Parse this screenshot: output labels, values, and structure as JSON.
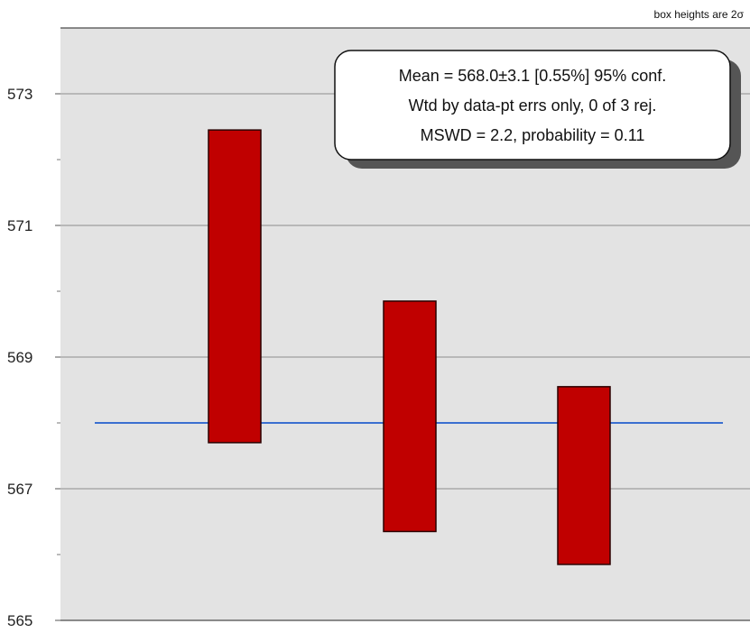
{
  "chart_data": {
    "type": "bar",
    "subtype": "weighted-mean-error-bars",
    "corner_note": "box heights are 2σ",
    "ylim": [
      565,
      574
    ],
    "y_ticks_labeled": [
      565,
      567,
      569,
      571,
      573
    ],
    "y_ticks_minor": [
      566,
      568,
      570,
      572
    ],
    "grid": true,
    "boxes": [
      {
        "low": 567.7,
        "high": 572.45
      },
      {
        "low": 566.35,
        "high": 569.85
      },
      {
        "low": 565.85,
        "high": 568.55
      }
    ],
    "mean_line": 568.0,
    "stats_box": {
      "line1": "Mean = 568.0±3.1  [0.55%]  95% conf.",
      "line2": "Wtd by data-pt errs only, 0 of 3 rej.",
      "line3": "MSWD = 2.2, probability = 0.11"
    },
    "colors": {
      "plot_bg": "#e3e3e3",
      "box_fill": "#c00000",
      "box_stroke": "#2a0000",
      "mean_line": "#3a6fd0",
      "grid": "#8c8c8c"
    }
  }
}
